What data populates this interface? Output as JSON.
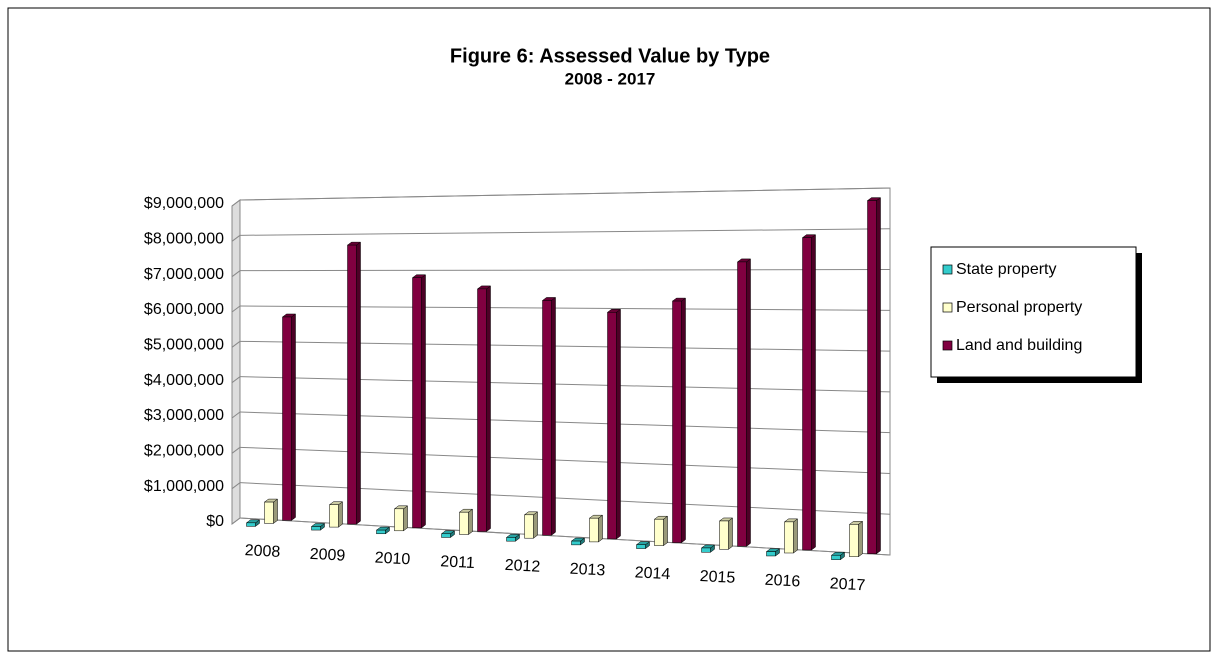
{
  "chart_data": {
    "type": "bar3d",
    "title": "Figure 6:  Assessed Value by Type",
    "subtitle": "2008 - 2017",
    "categories": [
      "2008",
      "2009",
      "2010",
      "2011",
      "2012",
      "2013",
      "2014",
      "2015",
      "2016",
      "2017"
    ],
    "series": [
      {
        "name": "State property",
        "color": "#33cccc",
        "values": [
          100000,
          100000,
          100000,
          100000,
          100000,
          100000,
          100000,
          110000,
          110000,
          110000
        ]
      },
      {
        "name": "Personal property",
        "color": "#ffffcc",
        "values": [
          600000,
          620000,
          600000,
          600000,
          620000,
          620000,
          680000,
          720000,
          780000,
          800000
        ]
      },
      {
        "name": "Land and building",
        "color": "#800040",
        "values": [
          5700000,
          7700000,
          6800000,
          6500000,
          6200000,
          5900000,
          6200000,
          7200000,
          7800000,
          8700000
        ]
      }
    ],
    "ylim": [
      0,
      9000000
    ],
    "yticks": [
      {
        "value": 0,
        "label": "$0"
      },
      {
        "value": 1000000,
        "label": "$1,000,000"
      },
      {
        "value": 2000000,
        "label": "$2,000,000"
      },
      {
        "value": 3000000,
        "label": "$3,000,000"
      },
      {
        "value": 4000000,
        "label": "$4,000,000"
      },
      {
        "value": 5000000,
        "label": "$5,000,000"
      },
      {
        "value": 6000000,
        "label": "$6,000,000"
      },
      {
        "value": 7000000,
        "label": "$7,000,000"
      },
      {
        "value": 8000000,
        "label": "$8,000,000"
      },
      {
        "value": 9000000,
        "label": "$9,000,000"
      }
    ],
    "grid": true
  }
}
